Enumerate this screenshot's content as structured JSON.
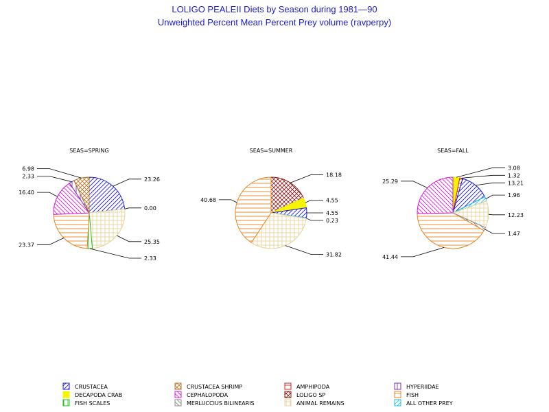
{
  "titles": {
    "line1": "LOLIGO PEALEII Diets by Season during 1981—90",
    "line2": "Unweighted Percent Mean Percent Prey  volume (ravperpy)"
  },
  "chart_data": [
    {
      "type": "pie",
      "title": "SEAS=SPRING",
      "slices": [
        {
          "category": "CRUSTACEA",
          "value": 23.26
        },
        {
          "category": "ALL OTHER PREY",
          "value": 0.0
        },
        {
          "category": "ANIMAL REMAINS",
          "value": 25.35
        },
        {
          "category": "FISH SCALES",
          "value": 2.33
        },
        {
          "category": "FISH",
          "value": 23.37
        },
        {
          "category": "CEPHALOPODA",
          "value": 16.4
        },
        {
          "category": "HYPERIIDAE",
          "value": 2.33
        },
        {
          "category": "CRUSTACEA SHRIMP",
          "value": 6.98
        }
      ]
    },
    {
      "type": "pie",
      "title": "SEAS=SUMMER",
      "slices": [
        {
          "category": "LOLIGO SP",
          "value": 18.18
        },
        {
          "category": "DECAPODA CRAB",
          "value": 4.55
        },
        {
          "category": "CRUSTACEA",
          "value": 4.55
        },
        {
          "category": "ALL OTHER PREY",
          "value": 0.23
        },
        {
          "category": "ANIMAL REMAINS",
          "value": 31.82
        },
        {
          "category": "FISH",
          "value": 40.68
        }
      ]
    },
    {
      "type": "pie",
      "title": "SEAS=FALL",
      "slices": [
        {
          "category": "DECAPODA CRAB",
          "value": 3.08
        },
        {
          "category": "AMPHIPODA",
          "value": 1.32
        },
        {
          "category": "CRUSTACEA",
          "value": 13.21
        },
        {
          "category": "ALL OTHER PREY",
          "value": 1.96
        },
        {
          "category": "ANIMAL REMAINS",
          "value": 12.23
        },
        {
          "category": "MERLUCCIUS BILINEARIS",
          "value": 1.47
        },
        {
          "category": "FISH",
          "value": 41.44
        },
        {
          "category": "CEPHALOPODA",
          "value": 25.29
        }
      ]
    }
  ],
  "legend": [
    {
      "label": "CRUSTACEA",
      "color": "#1a1ad6",
      "pattern": "diag-fwd"
    },
    {
      "label": "CRUSTACEA SHRIMP",
      "color": "#b5762a",
      "pattern": "crosshatch"
    },
    {
      "label": "AMPHIPODA",
      "color": "#cc2222",
      "pattern": "horiz"
    },
    {
      "label": "HYPERIIDAE",
      "color": "#7a2fb5",
      "pattern": "vert"
    },
    {
      "label": "DECAPODA CRAB",
      "color": "#f5f500",
      "pattern": "solid"
    },
    {
      "label": "CEPHALOPODA",
      "color": "#d619d6",
      "pattern": "diag-back"
    },
    {
      "label": "LOLIGO SP",
      "color": "#8b1a1a",
      "pattern": "crosshatch"
    },
    {
      "label": "FISH",
      "color": "#e8821e",
      "pattern": "horiz"
    },
    {
      "label": "FISH SCALES",
      "color": "#19c219",
      "pattern": "vert"
    },
    {
      "label": "MERLUCCIUS BILINEARIS",
      "color": "#888888",
      "pattern": "diag-back"
    },
    {
      "label": "ANIMAL REMAINS",
      "color": "#e6d39a",
      "pattern": "grid"
    },
    {
      "label": "ALL OTHER PREY",
      "color": "#19c2e6",
      "pattern": "diag-fwd"
    }
  ]
}
